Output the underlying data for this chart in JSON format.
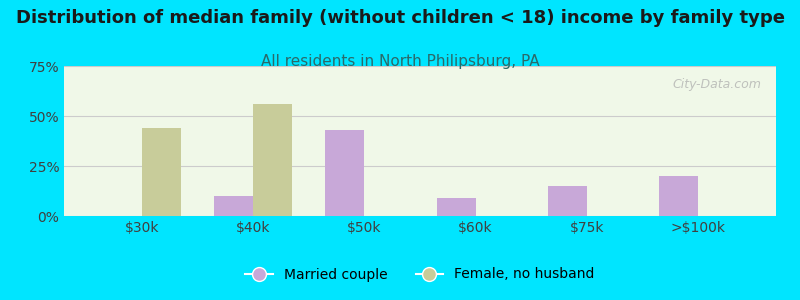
{
  "title": "Distribution of median family (without children < 18) income by family type",
  "subtitle": "All residents in North Philipsburg, PA",
  "categories": [
    "$30k",
    "$40k",
    "$50k",
    "$60k",
    "$75k",
    ">$100k"
  ],
  "married_couple": [
    0,
    10,
    43,
    9,
    15,
    20
  ],
  "female_no_husband": [
    44,
    56,
    0,
    0,
    0,
    0
  ],
  "married_color": "#c8a8d8",
  "female_color": "#c8cc9a",
  "background_outer": "#00e5ff",
  "background_chart": "#f0f8e8",
  "ylim": [
    0,
    75
  ],
  "yticks": [
    0,
    25,
    50,
    75
  ],
  "ytick_labels": [
    "0%",
    "25%",
    "50%",
    "75%"
  ],
  "title_fontsize": 13,
  "subtitle_fontsize": 11,
  "bar_width": 0.35,
  "watermark": "City-Data.com"
}
